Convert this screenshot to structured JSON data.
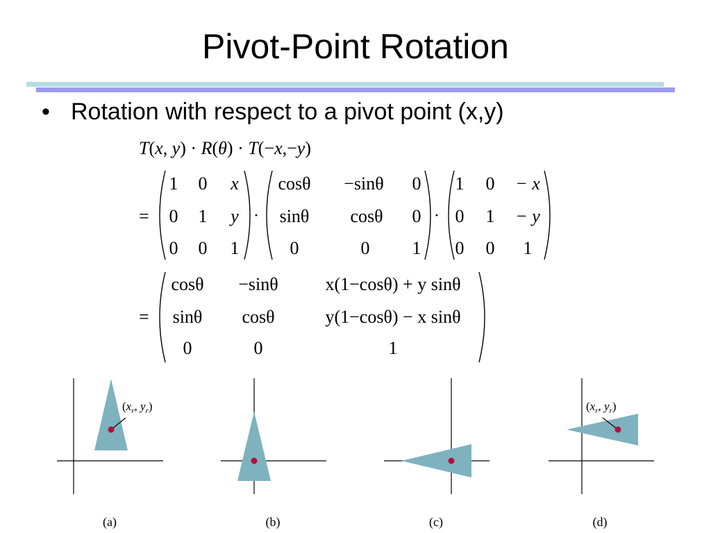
{
  "title": "Pivot-Point Rotation",
  "bullet": {
    "marker": "•",
    "text": "Rotation with respect to a pivot point (x,y)"
  },
  "equation": {
    "line1": [
      "T",
      "(",
      "x",
      ", ",
      "y",
      ")",
      " · ",
      "R",
      "(",
      "θ",
      ")",
      " · ",
      "T",
      "(−",
      "x",
      ",−",
      "y",
      ")"
    ],
    "equals": "=",
    "dot": "·",
    "matrix_T": [
      [
        "1",
        "0",
        "x"
      ],
      [
        "0",
        "1",
        "y"
      ],
      [
        "0",
        "0",
        "1"
      ]
    ],
    "matrix_R": [
      [
        "cosθ",
        "−sinθ",
        "0"
      ],
      [
        "sinθ",
        "cosθ",
        "0"
      ],
      [
        "0",
        "0",
        "1"
      ]
    ],
    "matrix_Tneg": [
      [
        "1",
        "0",
        "− x"
      ],
      [
        "0",
        "1",
        "− y"
      ],
      [
        "0",
        "0",
        "1"
      ]
    ],
    "matrix_result": [
      [
        "cosθ",
        "−sinθ",
        "x(1−cosθ) + y sinθ"
      ],
      [
        "sinθ",
        "cosθ",
        "y(1−cosθ) − x sinθ"
      ],
      [
        "0",
        "0",
        "1"
      ]
    ]
  },
  "figures": {
    "pivot_label": "(x_r, y_r)",
    "panels": [
      {
        "caption": "(a)"
      },
      {
        "caption": "(b)"
      },
      {
        "caption": "(c)"
      },
      {
        "caption": "(d)"
      }
    ],
    "colors": {
      "shape": "#7fb2bf",
      "pivot": "#b3103f",
      "axes": "#000000"
    }
  }
}
